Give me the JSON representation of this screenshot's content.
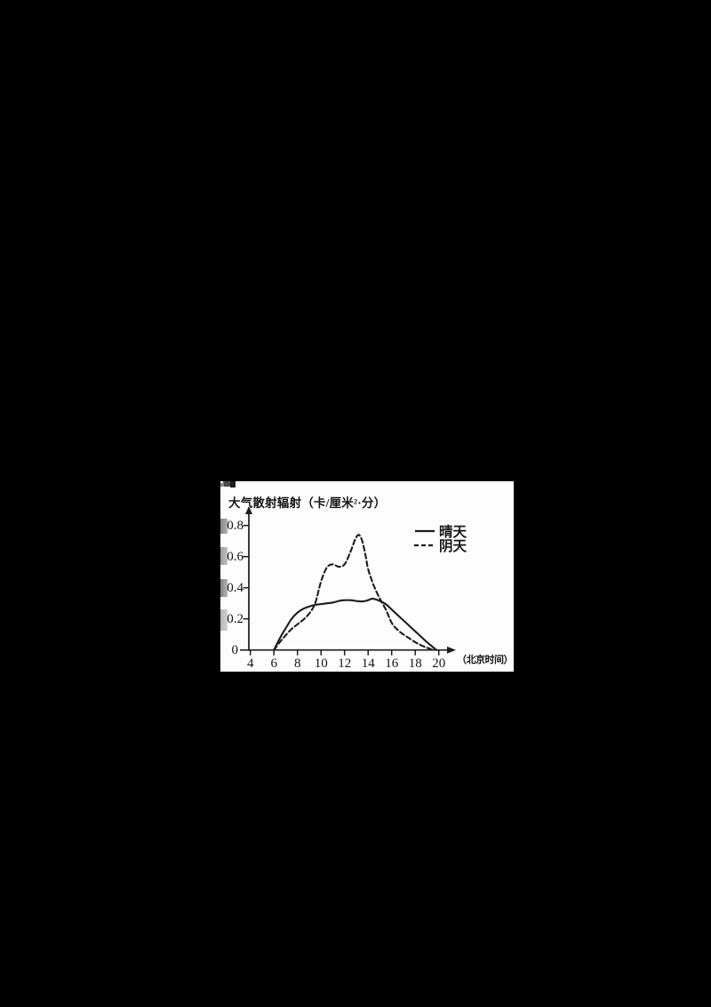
{
  "colors": {
    "page_bg": "#000000",
    "paper": "#fdfdfd",
    "ink": "#1c1c1c"
  },
  "chart_data": {
    "type": "line",
    "title": "大气散射辐射（卡/厘米²·分）",
    "ylabel": "大气散射辐射",
    "y_unit": "卡/厘米²·分",
    "x_axis_label": "（北京时间）",
    "xlabel": "北京时间",
    "xlim": [
      4,
      20
    ],
    "ylim": [
      0,
      0.8
    ],
    "x_ticks": [
      4,
      6,
      8,
      10,
      12,
      14,
      16,
      18,
      20
    ],
    "y_ticks": [
      0,
      0.2,
      0.4,
      0.6,
      0.8
    ],
    "grid": false,
    "legend_position": "top-right",
    "series": [
      {
        "name": "晴天",
        "style": "solid",
        "points": [
          [
            6,
            0
          ],
          [
            6.5,
            0.075
          ],
          [
            7,
            0.14
          ],
          [
            7.5,
            0.2
          ],
          [
            8,
            0.24
          ],
          [
            8.5,
            0.265
          ],
          [
            9,
            0.28
          ],
          [
            9.5,
            0.29
          ],
          [
            10,
            0.295
          ],
          [
            10.5,
            0.3
          ],
          [
            11,
            0.305
          ],
          [
            11.5,
            0.315
          ],
          [
            12,
            0.32
          ],
          [
            12.5,
            0.32
          ],
          [
            13,
            0.315
          ],
          [
            13.5,
            0.312
          ],
          [
            14,
            0.32
          ],
          [
            14.4,
            0.33
          ],
          [
            15,
            0.315
          ],
          [
            15.5,
            0.295
          ],
          [
            16,
            0.26
          ],
          [
            16.5,
            0.225
          ],
          [
            17,
            0.19
          ],
          [
            17.5,
            0.155
          ],
          [
            18,
            0.12
          ],
          [
            18.5,
            0.085
          ],
          [
            19,
            0.05
          ],
          [
            19.4,
            0.025
          ],
          [
            19.8,
            0
          ]
        ]
      },
      {
        "name": "阴天",
        "style": "dashed",
        "points": [
          [
            6,
            0
          ],
          [
            6.5,
            0.05
          ],
          [
            7,
            0.095
          ],
          [
            7.5,
            0.135
          ],
          [
            8,
            0.165
          ],
          [
            8.5,
            0.195
          ],
          [
            9,
            0.235
          ],
          [
            9.5,
            0.3
          ],
          [
            10,
            0.44
          ],
          [
            10.5,
            0.53
          ],
          [
            11,
            0.55
          ],
          [
            11.5,
            0.535
          ],
          [
            12,
            0.55
          ],
          [
            12.5,
            0.63
          ],
          [
            12.9,
            0.71
          ],
          [
            13.2,
            0.74
          ],
          [
            13.5,
            0.7
          ],
          [
            13.8,
            0.6
          ],
          [
            14,
            0.52
          ],
          [
            14.5,
            0.41
          ],
          [
            15,
            0.33
          ],
          [
            15.5,
            0.26
          ],
          [
            16,
            0.175
          ],
          [
            16.5,
            0.13
          ],
          [
            17,
            0.1
          ],
          [
            17.5,
            0.075
          ],
          [
            18,
            0.05
          ],
          [
            18.5,
            0.03
          ],
          [
            19,
            0.015
          ],
          [
            19.5,
            0
          ]
        ]
      }
    ]
  }
}
